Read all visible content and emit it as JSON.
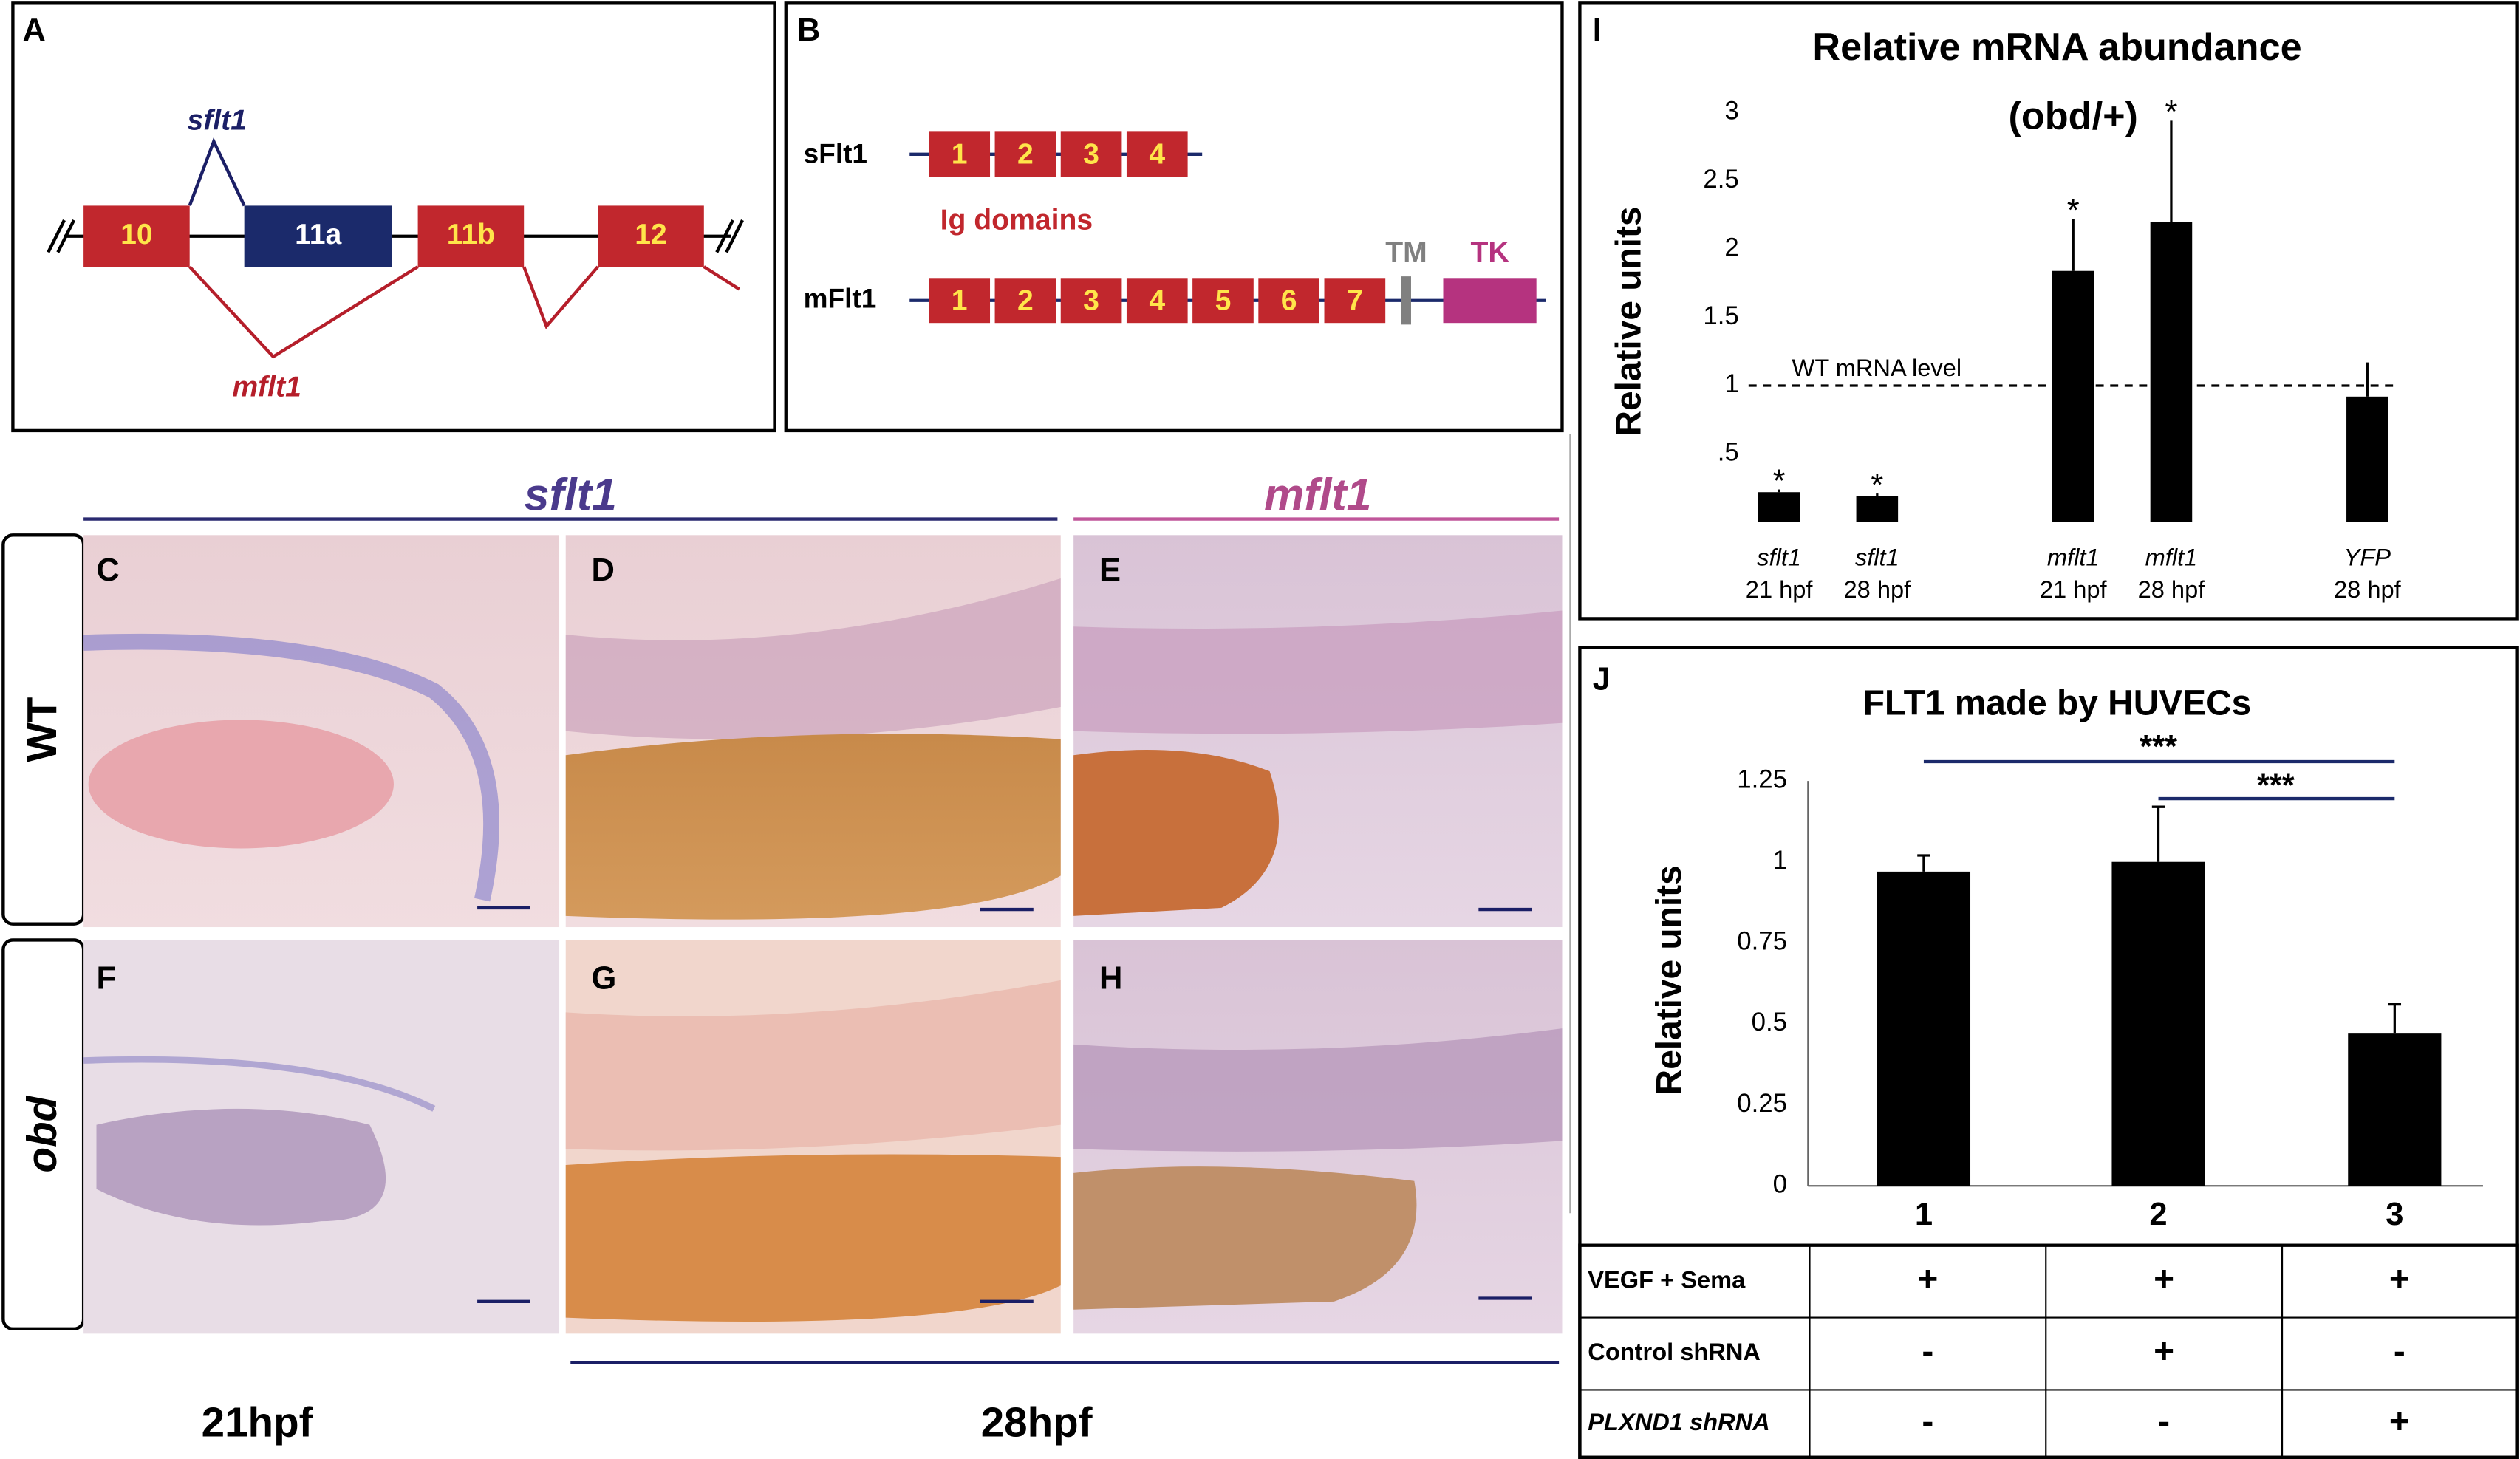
{
  "panels": {
    "A": {
      "label": "A",
      "exons": [
        "10",
        "11a",
        "11b",
        "12"
      ],
      "isoforms": [
        "sflt1",
        "mflt1"
      ]
    },
    "B": {
      "label": "B",
      "sflt1": {
        "name": "sFlt1",
        "domains": [
          "1",
          "2",
          "3",
          "4"
        ]
      },
      "caption": "Ig domains",
      "mflt1": {
        "name": "mFlt1",
        "domains": [
          "1",
          "2",
          "3",
          "4",
          "5",
          "6",
          "7"
        ],
        "tm": "TM",
        "tk": "TK"
      }
    },
    "images": {
      "header_sflt1": "sflt1",
      "header_mflt1": "mflt1",
      "rows": [
        "WT",
        "obd"
      ],
      "labels": [
        "C",
        "D",
        "E",
        "F",
        "G",
        "H"
      ],
      "stages": [
        "21hpf",
        "28hpf"
      ]
    }
  },
  "chart_data": [
    {
      "type": "bar",
      "panel": "I",
      "title": "Relative mRNA abundance",
      "subtitle": "(obd/+)",
      "y_label": "Relative units",
      "categories": [
        "sflt1",
        "sflt1",
        "mflt1",
        "mflt1",
        "YFP"
      ],
      "sublabels": [
        "21 hpf",
        "28 hpf",
        "21 hpf",
        "28 hpf",
        "28 hpf"
      ],
      "values": [
        0.22,
        0.19,
        1.84,
        2.2,
        0.92
      ],
      "errors": [
        0.02,
        0.02,
        0.38,
        0.74,
        0.25
      ],
      "significance": [
        "*",
        "*",
        "*",
        "*",
        null
      ],
      "reference_line": {
        "value": 1,
        "label": "WT mRNA level"
      },
      "color": "#000000",
      "ylim": [
        0,
        3
      ],
      "yticks": [
        {
          "value": 0.5,
          "label": ".5"
        },
        1,
        1.5,
        2,
        2.5,
        3
      ]
    },
    {
      "type": "bar",
      "panel": "J",
      "title": "FLT1 made by HUVECs",
      "y_label": "Relative units",
      "categories": [
        "1",
        "2",
        "3"
      ],
      "values": [
        0.97,
        1.0,
        0.47
      ],
      "errors": [
        0.05,
        0.17,
        0.09
      ],
      "significance": [
        "***",
        "***"
      ],
      "color": "#000000",
      "ylim": [
        0,
        1.25
      ],
      "yticks": [
        0,
        0.25,
        0.5,
        0.75,
        1,
        1.25
      ]
    }
  ],
  "table": {
    "rows": [
      [
        "VEGF + Sema",
        "+",
        "+",
        "+"
      ],
      [
        "Control shRNA",
        "-",
        "+",
        "-"
      ],
      [
        "PLXND1 shRNA",
        "-",
        "-",
        "+"
      ]
    ]
  }
}
